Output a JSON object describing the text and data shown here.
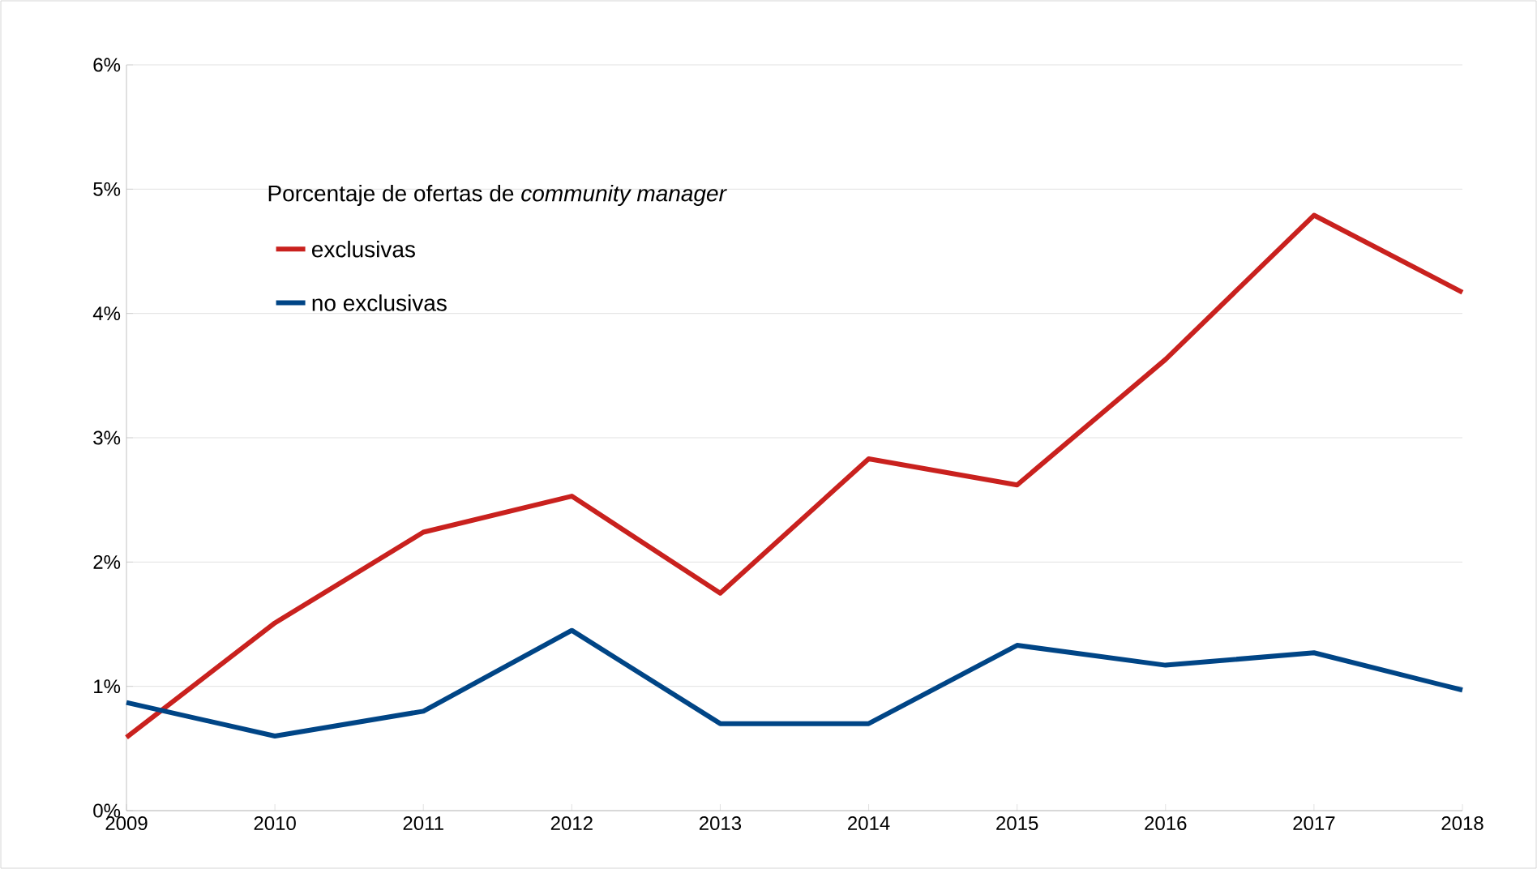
{
  "chart_data": {
    "type": "line",
    "categories": [
      "2009",
      "2010",
      "2011",
      "2012",
      "2013",
      "2014",
      "2015",
      "2016",
      "2017",
      "2018"
    ],
    "legend_title": "Porcentaje de ofertas de *community manager*",
    "series": [
      {
        "name": "exclusivas",
        "color": "#c9211e",
        "values": [
          0.59,
          1.51,
          2.24,
          2.53,
          1.75,
          2.83,
          2.62,
          3.63,
          4.79,
          4.17
        ]
      },
      {
        "name": "no exclusivas",
        "color": "#004586",
        "values": [
          0.87,
          0.6,
          0.8,
          1.45,
          0.7,
          0.7,
          1.33,
          1.17,
          1.27,
          0.97
        ]
      }
    ],
    "ylim": [
      0,
      6
    ],
    "yticks": [
      {
        "value": 0,
        "label": "0%"
      },
      {
        "value": 1,
        "label": "1%"
      },
      {
        "value": 2,
        "label": "2%"
      },
      {
        "value": 3,
        "label": "3%"
      },
      {
        "value": 4,
        "label": "4%"
      },
      {
        "value": 5,
        "label": "5%"
      },
      {
        "value": 6,
        "label": "6%"
      }
    ],
    "grid": "y",
    "legend": "top left",
    "marker": "none",
    "line_style": "solid"
  }
}
